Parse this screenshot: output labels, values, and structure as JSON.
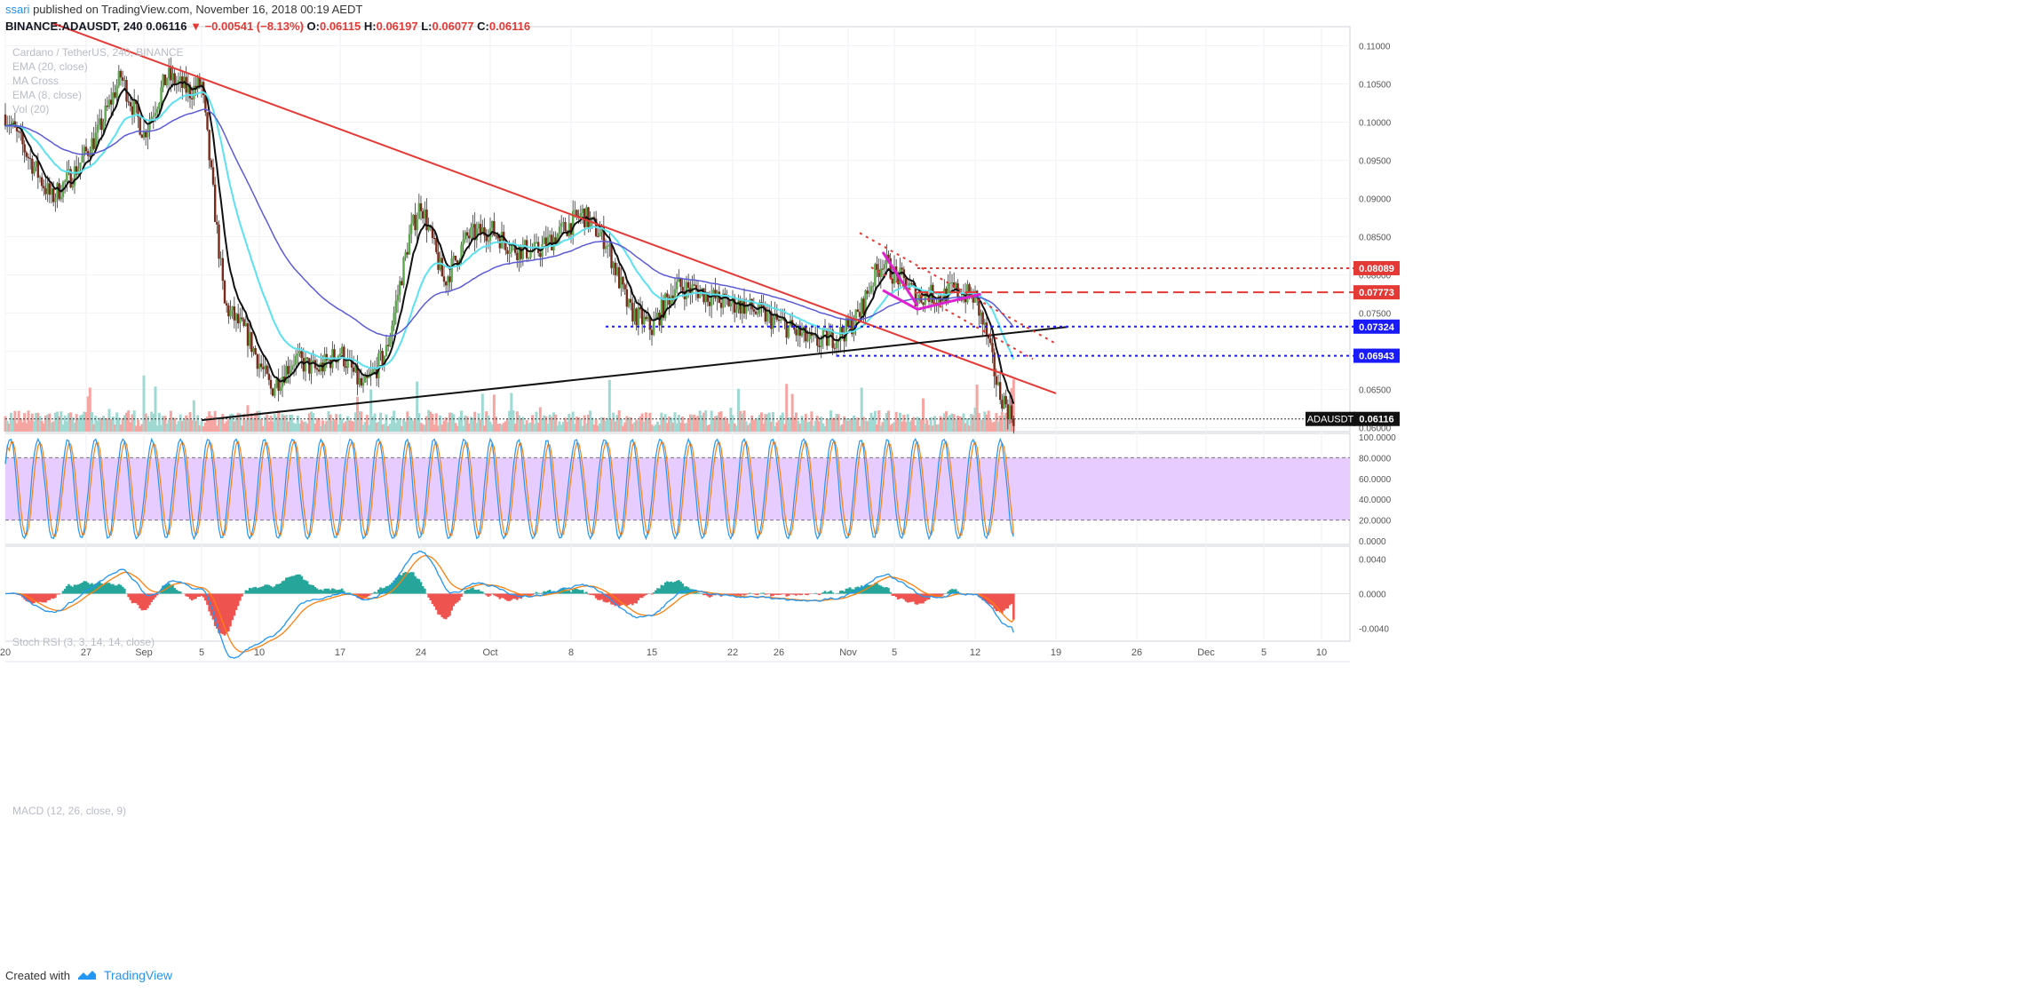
{
  "header": {
    "username": "ssari",
    "published": "published on TradingView.com, November 16, 2018 00:19 AEDT",
    "symbol_line": "BINANCE:ADAUSDT, 240",
    "last": "0.06116",
    "change": "▼ −0.00541 (−8.13%)",
    "open_label": "O:",
    "open": "0.06115",
    "high_label": "H:",
    "high": "0.06197",
    "low_label": "L:",
    "low": "0.06077",
    "close_label": "C:",
    "close": "0.06116"
  },
  "overlays": {
    "main": [
      "Cardano / TetherUS, 240, BINANCE",
      "EMA (20, close)",
      "MA Cross",
      "EMA (8, close)",
      "Vol (20)"
    ],
    "stoch": "Stoch RSI (3, 3, 14, 14, close)",
    "macd": "MACD (12, 26, close, 9)"
  },
  "footer": {
    "created_with": "Created with",
    "brand": "TradingView"
  },
  "colors": {
    "up": "#26a69a",
    "down": "#ef5350",
    "trend_red": "#e53935",
    "trend_black": "#111111",
    "level_blue": "#1a1aff",
    "pink": "#e020d0",
    "ema_cyan": "#5ce1f0",
    "ma_blue": "#5b5bd6",
    "stoch_k": "#2196f3",
    "stoch_d": "#ff7f0e",
    "stoch_band": "#e6ccff"
  },
  "chart_data": {
    "type": "candlestick",
    "title": "Cardano / TetherUS, 240, BINANCE",
    "x_tick_labels": [
      "20",
      "27",
      "Sep",
      "5",
      "10",
      "17",
      "24",
      "Oct",
      "8",
      "15",
      "22",
      "26",
      "Nov",
      "5",
      "12",
      "19",
      "26",
      "Dec",
      "5",
      "10"
    ],
    "x_tick_day_index": [
      0,
      7,
      12,
      17,
      22,
      29,
      36,
      42,
      49,
      56,
      63,
      67,
      73,
      77,
      84,
      91,
      98,
      104,
      109,
      114
    ],
    "y_ticks": [
      "0.11000",
      "0.10500",
      "0.10000",
      "0.09500",
      "0.09000",
      "0.08500",
      "0.08000",
      "0.07500",
      "0.07000",
      "0.06500",
      "0.06000"
    ],
    "ylim": [
      0.0595,
      0.1125
    ],
    "price_path_days": [
      0,
      2,
      4,
      6,
      8,
      10,
      12,
      14,
      16,
      17,
      19,
      21,
      23,
      25,
      27,
      29,
      31,
      33,
      35,
      36,
      38,
      40,
      42,
      44,
      46,
      48,
      50,
      52,
      54,
      56,
      58,
      60,
      62,
      64,
      66,
      68,
      70,
      72,
      73,
      74,
      75,
      76,
      77,
      78,
      79,
      80,
      81,
      82,
      83,
      84,
      85,
      86,
      87,
      87.5
    ],
    "price_path_close": [
      0.101,
      0.0955,
      0.09,
      0.0935,
      0.0985,
      0.106,
      0.0985,
      0.106,
      0.104,
      0.105,
      0.076,
      0.072,
      0.065,
      0.069,
      0.0675,
      0.07,
      0.065,
      0.07,
      0.085,
      0.0895,
      0.079,
      0.085,
      0.086,
      0.0835,
      0.083,
      0.0855,
      0.088,
      0.0845,
      0.0755,
      0.073,
      0.0785,
      0.078,
      0.0765,
      0.076,
      0.0745,
      0.073,
      0.071,
      0.072,
      0.073,
      0.075,
      0.079,
      0.082,
      0.08,
      0.079,
      0.077,
      0.0775,
      0.077,
      0.078,
      0.0775,
      0.077,
      0.072,
      0.065,
      0.062,
      0.0612
    ],
    "levels": [
      {
        "value": 0.08089,
        "label": "0.08089",
        "style": "dotted",
        "color": "#e53935"
      },
      {
        "value": 0.07773,
        "label": "0.07773",
        "style": "dashed",
        "color": "#e53935"
      },
      {
        "value": 0.07324,
        "label": "0.07324",
        "style": "dotted",
        "color": "#1a1aff"
      },
      {
        "value": 0.06943,
        "label": "0.06943",
        "style": "dotted",
        "color": "#1a1aff"
      }
    ],
    "last_price": {
      "symbol": "ADAUSDT",
      "value": 0.06116,
      "label": "0.06116"
    },
    "trendlines": [
      {
        "name": "descending-resistance",
        "color": "#e53935",
        "from": {
          "day": 4,
          "price": 0.113
        },
        "to": {
          "day": 91,
          "price": 0.0645
        }
      },
      {
        "name": "ascending-support",
        "color": "#111111",
        "from": {
          "day": 17,
          "price": 0.061
        },
        "to": {
          "day": 92,
          "price": 0.0732
        }
      }
    ],
    "stoch_rsi": {
      "title": "Stoch RSI (3, 3, 14, 14, close)",
      "y_ticks": [
        "100.0000",
        "80.0000",
        "60.0000",
        "40.0000",
        "20.0000",
        "0.0000"
      ],
      "upper_band": 80,
      "lower_band": 20,
      "last_k": 4,
      "last_d": 6
    },
    "macd": {
      "title": "MACD (12, 26, close, 9)",
      "y_ticks": [
        "0.0040",
        "0.0000",
        "-0.0040"
      ],
      "last_macd": -0.0045,
      "last_signal": -0.003
    }
  }
}
